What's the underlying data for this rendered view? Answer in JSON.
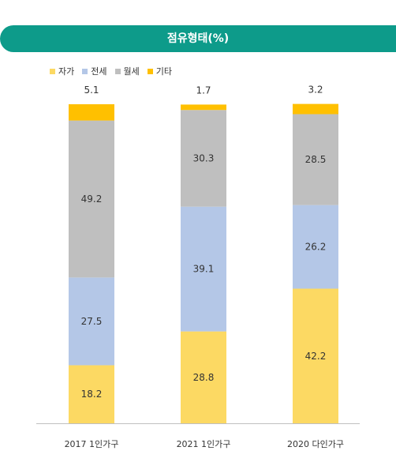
{
  "chart_data": {
    "type": "bar",
    "stacked": true,
    "title": "점유형태(%)",
    "legend_position": "top-left",
    "categories": [
      "2017 1인가구",
      "2021 1인가구",
      "2020 다인가구"
    ],
    "series": [
      {
        "name": "자가",
        "color": "#fcd963",
        "values": [
          18.2,
          28.8,
          42.2
        ]
      },
      {
        "name": "전세",
        "color": "#b4c7e7",
        "values": [
          27.5,
          39.1,
          26.2
        ]
      },
      {
        "name": "월세",
        "color": "#bfbfbf",
        "values": [
          49.2,
          30.3,
          28.5
        ]
      },
      {
        "name": "기타",
        "color": "#ffc000",
        "values": [
          5.1,
          1.7,
          3.2
        ]
      }
    ],
    "ylim": [
      0,
      100
    ],
    "grid": false
  }
}
